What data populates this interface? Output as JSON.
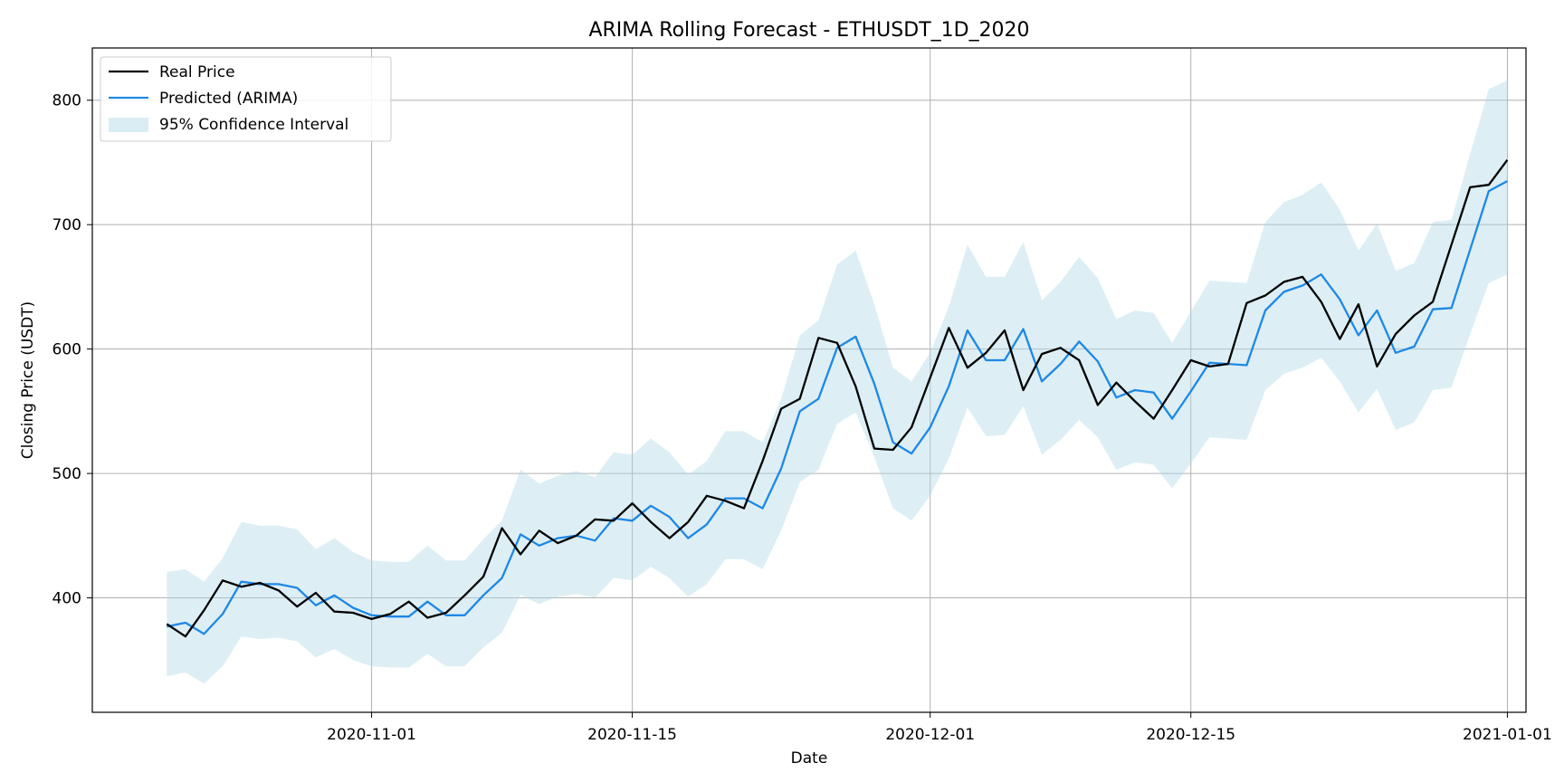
{
  "chart_data": {
    "type": "line",
    "title": "ARIMA Rolling Forecast - ETHUSDT_1D_2020",
    "xlabel": "Date",
    "ylabel": "Closing Price (USDT)",
    "xlim": [
      "2020-10-17",
      "2021-01-02"
    ],
    "ylim": [
      308,
      842
    ],
    "x_ticks": [
      "2020-11-01",
      "2020-11-15",
      "2020-12-01",
      "2020-12-15",
      "2021-01-01"
    ],
    "y_ticks": [
      400,
      500,
      600,
      700,
      800
    ],
    "grid": true,
    "legend_position": "top-left",
    "colors": {
      "real": "#000000",
      "predicted": "#1e88e5",
      "ci": "#add8e6"
    },
    "x_start": "2020-10-21",
    "series": [
      {
        "name": "Real Price",
        "values": [
          379,
          369,
          390,
          414,
          409,
          412,
          406,
          393,
          404,
          389,
          388,
          383,
          387,
          397,
          384,
          388,
          402,
          417,
          456,
          435,
          454,
          444,
          450,
          463,
          462,
          476,
          461,
          448,
          461,
          482,
          478,
          472,
          510,
          552,
          560,
          609,
          605,
          570,
          520,
          519,
          537,
          577,
          617,
          585,
          597,
          615,
          567,
          596,
          601,
          591,
          555,
          573,
          558,
          544,
          567,
          591,
          586,
          588,
          637,
          643,
          654,
          658,
          638,
          608,
          636,
          586,
          612,
          627,
          638,
          684,
          730,
          732,
          752
        ]
      },
      {
        "name": "Predicted (ARIMA)",
        "values": [
          377,
          380,
          371,
          387,
          413,
          411,
          411,
          408,
          394,
          402,
          392,
          386,
          385,
          385,
          397,
          386,
          386,
          402,
          416,
          451,
          442,
          448,
          450,
          446,
          464,
          462,
          474,
          465,
          448,
          459,
          480,
          480,
          472,
          504,
          550,
          560,
          601,
          610,
          572,
          525,
          516,
          537,
          570,
          615,
          591,
          591,
          616,
          574,
          588,
          606,
          590,
          561,
          567,
          565,
          544,
          566,
          589,
          588,
          587,
          631,
          646,
          651,
          660,
          640,
          611,
          631,
          597,
          602,
          632,
          633,
          680,
          727,
          735
        ]
      }
    ],
    "confidence_interval": {
      "name": "95% Confidence Interval",
      "upper": [
        421,
        423,
        413,
        432,
        461,
        458,
        458,
        455,
        439,
        448,
        437,
        430,
        429,
        429,
        442,
        430,
        430,
        447,
        462,
        503,
        492,
        498,
        502,
        497,
        517,
        515,
        528,
        517,
        499,
        510,
        534,
        534,
        525,
        560,
        611,
        623,
        668,
        679,
        636,
        585,
        574,
        597,
        634,
        684,
        658,
        658,
        686,
        639,
        654,
        674,
        657,
        624,
        631,
        629,
        605,
        630,
        655,
        654,
        653,
        702,
        718,
        724,
        734,
        712,
        679,
        701,
        663,
        669,
        702,
        704,
        757,
        809,
        816
      ],
      "lower": [
        337,
        340,
        331,
        345,
        369,
        367,
        368,
        365,
        352,
        359,
        350,
        345,
        344,
        344,
        355,
        345,
        345,
        360,
        372,
        402,
        395,
        401,
        403,
        400,
        416,
        414,
        425,
        416,
        401,
        411,
        431,
        431,
        423,
        454,
        493,
        503,
        540,
        549,
        513,
        472,
        462,
        482,
        512,
        553,
        530,
        531,
        554,
        515,
        527,
        543,
        529,
        503,
        509,
        507,
        488,
        508,
        529,
        528,
        527,
        567,
        580,
        585,
        593,
        574,
        549,
        568,
        535,
        541,
        567,
        569,
        612,
        653,
        660
      ]
    }
  }
}
